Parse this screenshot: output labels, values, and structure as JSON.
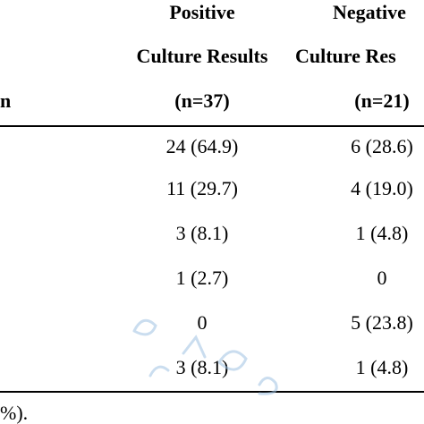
{
  "header": {
    "col1_line1": "Positive",
    "col2_line1": "Negative",
    "col1_line2": "Culture Results",
    "col2_line2": "Culture Res",
    "row_label_fragment": "n",
    "col1_n": "(n=37)",
    "col2_n": "(n=21)"
  },
  "rows": [
    {
      "positive": "24 (64.9)",
      "negative": "6 (28.6)"
    },
    {
      "positive": "11 (29.7)",
      "negative": "4 (19.0)"
    },
    {
      "positive": "3 (8.1)",
      "negative": "1 (4.8)"
    },
    {
      "positive": "1 (2.7)",
      "negative": "0"
    },
    {
      "positive": "0",
      "negative": "5 (23.8)"
    },
    {
      "positive": "3 (8.1)",
      "negative": "1 (4.8)"
    }
  ],
  "footnote": "%).",
  "colors": {
    "text": "#000000",
    "watermark": "#9fc3e3"
  }
}
